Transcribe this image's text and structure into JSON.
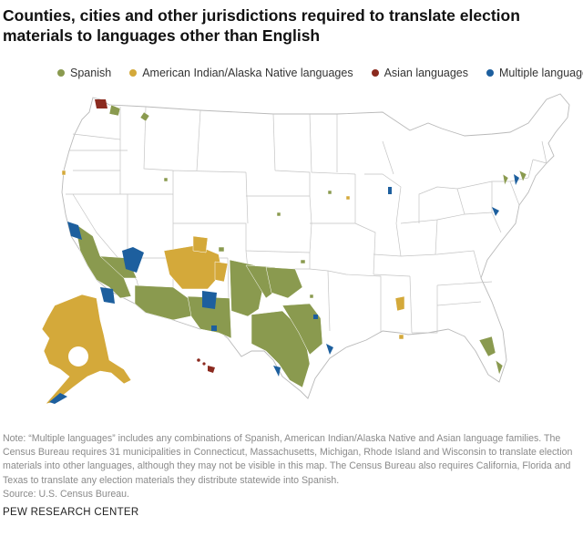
{
  "header": {
    "title": "Counties, cities and other jurisdictions required to translate election materials to languages other than English"
  },
  "legend": {
    "items": [
      {
        "label": "Spanish",
        "color": "#8a9a4f"
      },
      {
        "label": "American Indian/Alaska Native languages",
        "color": "#d4a93a"
      },
      {
        "label": "Asian languages",
        "color": "#8b2a1f"
      },
      {
        "label": "Multiple languages",
        "color": "#1d5f9e"
      }
    ]
  },
  "colors": {
    "state_fill": "#ffffff",
    "state_stroke": "#b9b9b9",
    "county_stroke": "#ffffff"
  },
  "map": {
    "type": "choropleth",
    "region": "United States counties"
  },
  "footer_note": {
    "note": "Note: “Multiple languages” includes any combinations of Spanish, American Indian/Alaska Native and Asian language families. The Census Bureau requires 31 municipalities in Connecticut, Massachusetts, Michigan, Rhode Island and Wisconsin to translate election materials into other languages, although they may not be visible in this map. The Census Bureau also requires California, Florida and Texas to translate any election materials they distribute statewide into Spanish.",
    "source": "Source: U.S. Census Bureau."
  },
  "branding": {
    "org": "PEW RESEARCH CENTER"
  }
}
